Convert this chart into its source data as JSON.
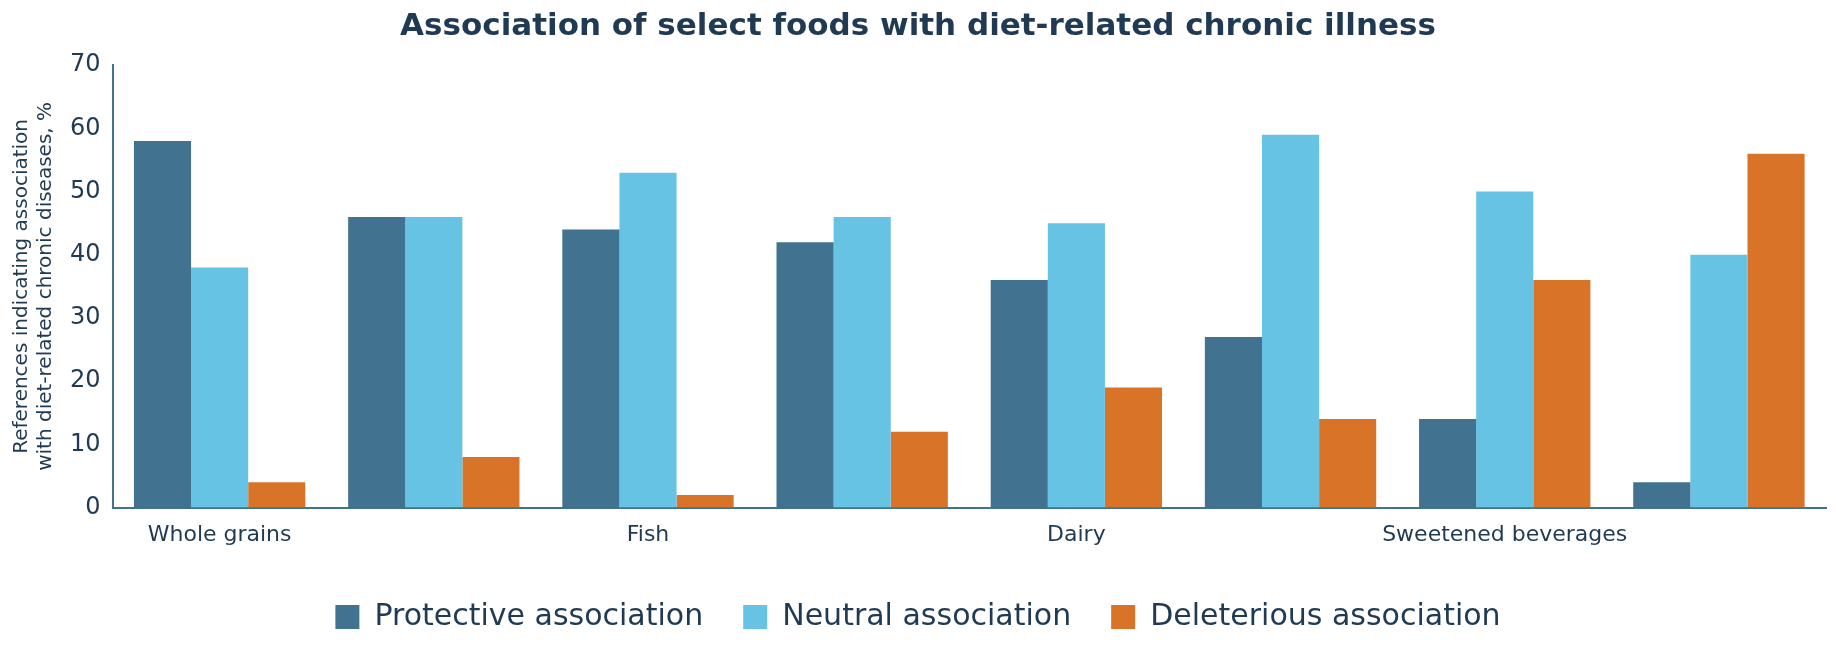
{
  "chart_data": {
    "type": "bar",
    "title": "Association of select foods with diet-related chronic illness",
    "ylabel": "References indicating association\nwith diet-related chronic diseases, %",
    "categories": [
      "Whole grains",
      null,
      "Fish",
      null,
      "Dairy",
      null,
      "Sweetened beverages",
      null
    ],
    "series": [
      {
        "name": "Protective association",
        "color": "#41728f",
        "values": [
          58,
          46,
          44,
          42,
          36,
          27,
          14,
          4
        ]
      },
      {
        "name": "Neutral association",
        "color": "#67c3e3",
        "values": [
          38,
          46,
          53,
          46,
          45,
          59,
          50,
          40
        ]
      },
      {
        "name": "Deleterious association",
        "color": "#d97327",
        "values": [
          4,
          8,
          2,
          12,
          19,
          14,
          36,
          56
        ]
      }
    ],
    "ylim": [
      0,
      70
    ],
    "yticks": [
      0,
      10,
      20,
      30,
      40,
      50,
      60,
      70
    ],
    "grid": false,
    "legend": "bottom"
  }
}
